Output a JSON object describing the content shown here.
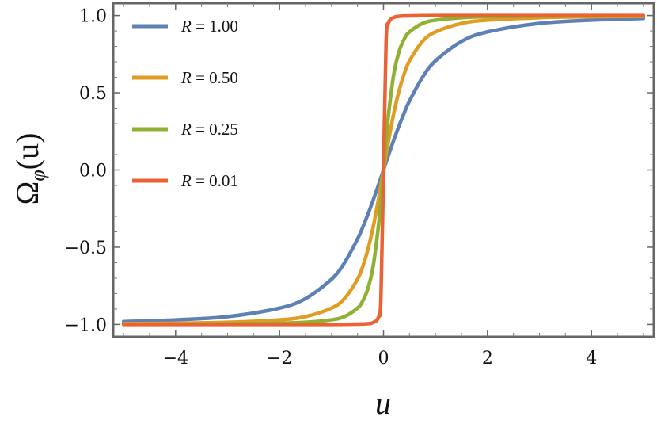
{
  "chart_data": {
    "type": "line",
    "title": "",
    "xlabel": "u",
    "ylabel": "Ω_φ(u)",
    "ylabel_main": "Ω",
    "ylabel_sub": "φ",
    "ylabel_arg": "(u)",
    "xlim": [
      -5.2,
      5.2
    ],
    "ylim": [
      -1.08,
      1.08
    ],
    "x_ticks": [
      -4,
      -2,
      0,
      2,
      4
    ],
    "x_tick_labels": [
      "−4",
      "−2",
      "0",
      "2",
      "4"
    ],
    "y_ticks": [
      -1.0,
      -0.5,
      0.0,
      0.5,
      1.0
    ],
    "y_tick_labels": [
      "−1.0",
      "−0.5",
      "0.0",
      "0.5",
      "1.0"
    ],
    "grid": false,
    "legend_position": "top-left",
    "x": [
      -5.0,
      -4.0,
      -3.0,
      -2.0,
      -1.5,
      -1.0,
      -0.75,
      -0.5,
      -0.4,
      -0.3,
      -0.2,
      -0.1,
      -0.05,
      0.0,
      0.05,
      0.1,
      0.2,
      0.3,
      0.4,
      0.5,
      0.75,
      1.0,
      1.5,
      2.0,
      3.0,
      4.0,
      5.0
    ],
    "series": [
      {
        "name": "R = 1.00",
        "color": "#5e81b5",
        "values": [
          -0.981,
          -0.97,
          -0.949,
          -0.894,
          -0.832,
          -0.707,
          -0.6,
          -0.447,
          -0.371,
          -0.287,
          -0.196,
          -0.1,
          -0.05,
          0.0,
          0.05,
          0.1,
          0.196,
          0.287,
          0.371,
          0.447,
          0.6,
          0.707,
          0.832,
          0.894,
          0.949,
          0.97,
          0.981
        ]
      },
      {
        "name": "R = 0.50",
        "color": "#e19c24",
        "values": [
          -0.995,
          -0.992,
          -0.986,
          -0.97,
          -0.949,
          -0.894,
          -0.832,
          -0.707,
          -0.625,
          -0.514,
          -0.371,
          -0.196,
          -0.1,
          0.0,
          0.1,
          0.196,
          0.371,
          0.514,
          0.625,
          0.707,
          0.832,
          0.894,
          0.949,
          0.97,
          0.986,
          0.992,
          0.995
        ]
      },
      {
        "name": "R = 0.25",
        "color": "#8fb032",
        "values": [
          -0.999,
          -0.998,
          -0.996,
          -0.992,
          -0.986,
          -0.97,
          -0.949,
          -0.894,
          -0.848,
          -0.768,
          -0.625,
          -0.371,
          -0.196,
          0.0,
          0.196,
          0.371,
          0.625,
          0.768,
          0.848,
          0.894,
          0.949,
          0.97,
          0.986,
          0.992,
          0.996,
          0.998,
          0.999
        ]
      },
      {
        "name": "R = 0.01",
        "color": "#eb6235",
        "values": [
          -1.0,
          -1.0,
          -1.0,
          -1.0,
          -1.0,
          -1.0,
          -0.999,
          -0.998,
          -0.997,
          -0.995,
          -0.988,
          -0.955,
          -0.832,
          0.0,
          0.832,
          0.955,
          0.988,
          0.995,
          0.997,
          0.998,
          0.999,
          1.0,
          1.0,
          1.0,
          1.0,
          1.0,
          1.0
        ]
      }
    ],
    "legend_labels": [
      {
        "var": "R",
        "eq": "=",
        "val": "1.00"
      },
      {
        "var": "R",
        "eq": "=",
        "val": "0.50"
      },
      {
        "var": "R",
        "eq": "=",
        "val": "0.25"
      },
      {
        "var": "R",
        "eq": "=",
        "val": "0.01"
      }
    ]
  }
}
